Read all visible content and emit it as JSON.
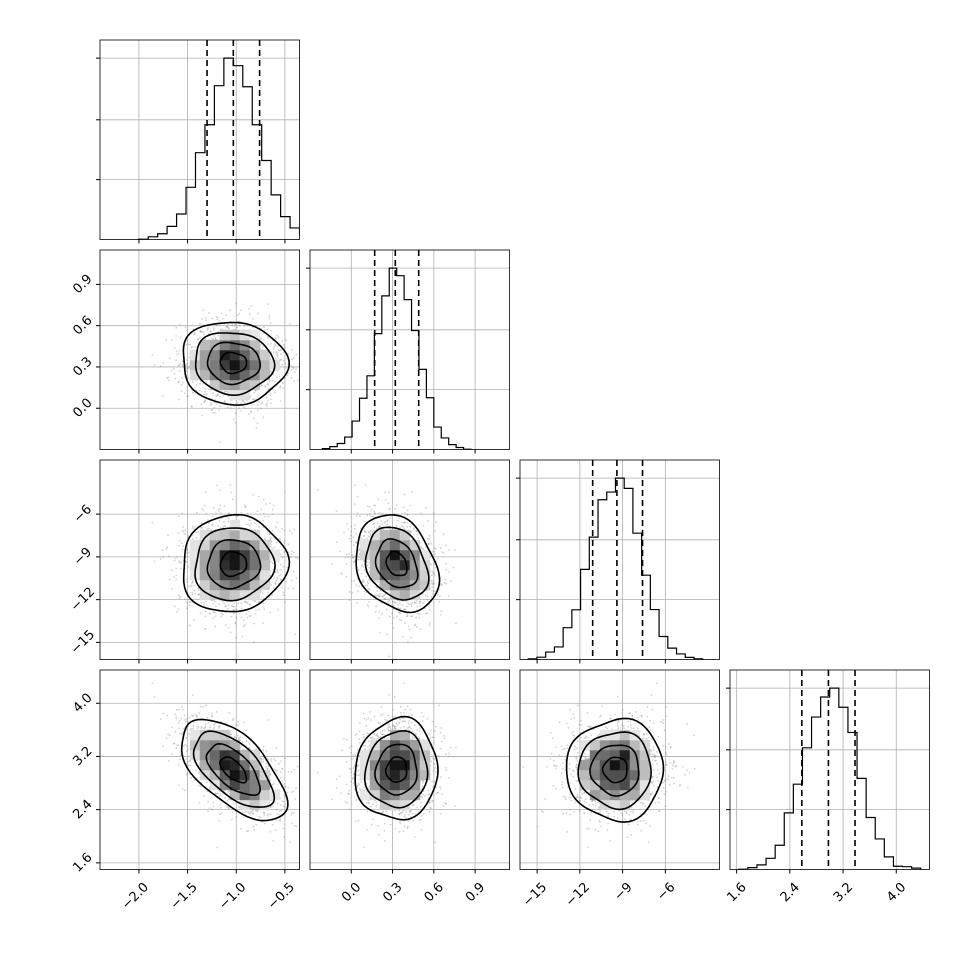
{
  "chart_data": {
    "type": "corner",
    "n_params": 4,
    "quantiles": [
      0.16,
      0.5,
      0.84
    ],
    "params": [
      {
        "range": [
          -2.4,
          -0.35
        ],
        "ticks": [
          -2.0,
          -1.5,
          -1.0,
          -0.5
        ],
        "tick_labels": [
          "−2.0",
          "−1.5",
          "−1.0",
          "−0.5"
        ],
        "mean": -1.03,
        "sd": 0.27,
        "q": [
          -1.3,
          -1.03,
          -0.76
        ]
      },
      {
        "range": [
          -0.3,
          1.15
        ],
        "ticks": [
          0.0,
          0.3,
          0.6,
          0.9
        ],
        "tick_labels": [
          "0.0",
          "0.3",
          "0.6",
          "0.9"
        ],
        "mean": 0.33,
        "sd": 0.15,
        "q": [
          0.17,
          0.32,
          0.49
        ]
      },
      {
        "range": [
          -16.2,
          -2.2
        ],
        "ticks": [
          -15,
          -12,
          -9,
          -6
        ],
        "tick_labels": [
          "−15",
          "−12",
          "−9",
          "−6"
        ],
        "mean": -9.5,
        "sd": 1.7,
        "q": [
          -11.1,
          -9.4,
          -7.6
        ]
      },
      {
        "range": [
          1.5,
          4.5
        ],
        "ticks": [
          1.6,
          2.4,
          3.2,
          4.0
        ],
        "tick_labels": [
          "1.6",
          "2.4",
          "3.2",
          "4.0"
        ],
        "mean": 3.0,
        "sd": 0.38,
        "q": [
          2.58,
          2.98,
          3.38
        ]
      }
    ],
    "correlations": [
      [
        1.0,
        -0.05,
        0.05,
        -0.6
      ],
      [
        -0.05,
        1.0,
        -0.25,
        0.05
      ],
      [
        0.05,
        -0.25,
        1.0,
        0.0
      ],
      [
        -0.6,
        0.05,
        0.0,
        1.0
      ]
    ],
    "histogram_bins": 20,
    "hist2d_bins": 20,
    "scatter_points": 1400,
    "grid": true,
    "colors": {
      "line": "#000000",
      "points": "#808080",
      "grid": "#b0b0b0"
    }
  }
}
